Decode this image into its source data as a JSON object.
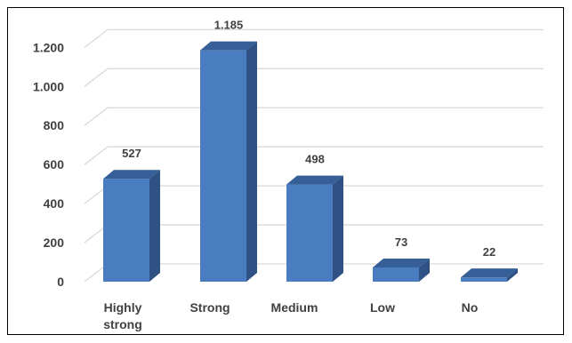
{
  "chart_data": {
    "type": "bar",
    "style": "3d-column",
    "categories": [
      "Highly strong",
      "Strong",
      "Medium",
      "Low",
      "No"
    ],
    "category_lines": [
      [
        "Highly",
        "strong"
      ],
      [
        "Strong"
      ],
      [
        "Medium"
      ],
      [
        "Low"
      ],
      [
        "No"
      ]
    ],
    "values": [
      527,
      1185,
      498,
      73,
      22
    ],
    "value_labels": [
      "527",
      "1.185",
      "498",
      "73",
      "22"
    ],
    "yticks": [
      0,
      200,
      400,
      600,
      800,
      1000,
      1200
    ],
    "ytick_labels": [
      "0",
      "200",
      "400",
      "600",
      "800",
      "1.000",
      "1.200"
    ],
    "ylim": [
      0,
      1300
    ],
    "title": "",
    "xlabel": "",
    "ylabel": "",
    "grid": true,
    "legend": "none",
    "colors": {
      "bar_front": "#4a7cc0",
      "bar_side": "#2f5183",
      "bar_top": "#365f97",
      "grid": "#d9d9d9",
      "text": "#404040"
    }
  }
}
